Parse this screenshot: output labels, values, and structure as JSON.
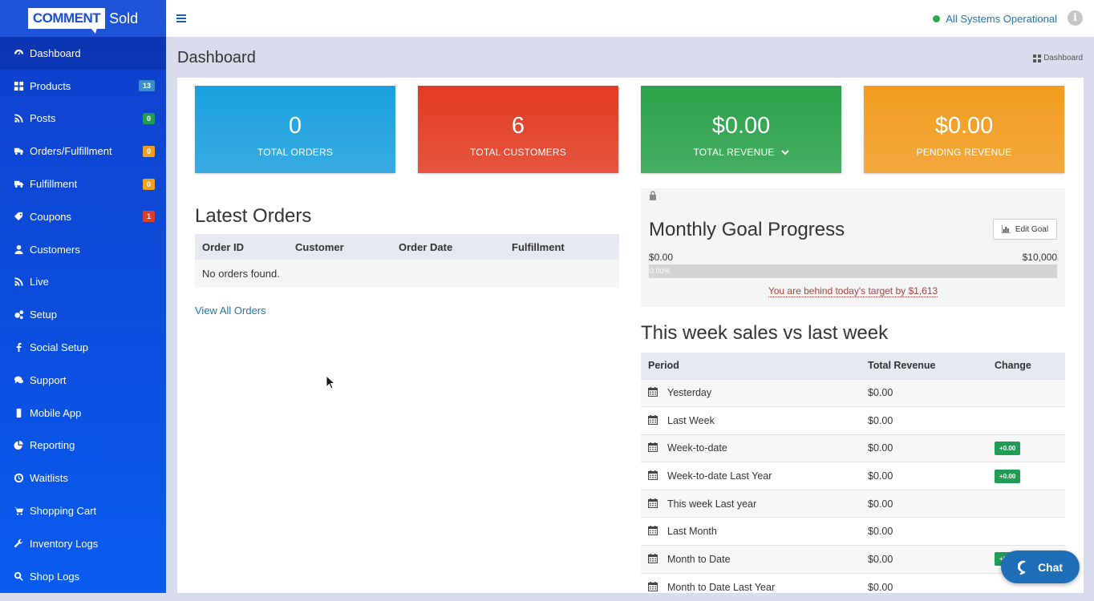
{
  "brand": {
    "comment": "COMMENT",
    "sold": "Sold"
  },
  "sidebar": {
    "items": [
      {
        "label": "Dashboard",
        "icon": "dashboard-icon",
        "badge": null,
        "active": true
      },
      {
        "label": "Products",
        "icon": "grid-icon",
        "badge": "13",
        "badge_color": "#3a8fc7"
      },
      {
        "label": "Posts",
        "icon": "rss-icon",
        "badge": "0",
        "badge_color": "#1f9d55"
      },
      {
        "label": "Orders/Fulfillment",
        "icon": "truck-icon",
        "badge": "0",
        "badge_color": "#f0a020"
      },
      {
        "label": "Fulfillment",
        "icon": "truck-icon",
        "badge": "0",
        "badge_color": "#f0a020"
      },
      {
        "label": "Coupons",
        "icon": "tag-icon",
        "badge": "1",
        "badge_color": "#d9412e"
      },
      {
        "label": "Customers",
        "icon": "user-icon",
        "badge": null
      },
      {
        "label": "Live",
        "icon": "rss-icon",
        "badge": null
      },
      {
        "label": "Setup",
        "icon": "cogs-icon",
        "badge": null
      },
      {
        "label": "Social Setup",
        "icon": "facebook-icon",
        "badge": null
      },
      {
        "label": "Support",
        "icon": "comments-icon",
        "badge": null
      },
      {
        "label": "Mobile App",
        "icon": "mobile-icon",
        "badge": null
      },
      {
        "label": "Reporting",
        "icon": "pie-chart-icon",
        "badge": null
      },
      {
        "label": "Waitlists",
        "icon": "clock-icon",
        "badge": null
      },
      {
        "label": "Shopping Cart",
        "icon": "cart-icon",
        "badge": null
      },
      {
        "label": "Inventory Logs",
        "icon": "wrench-icon",
        "badge": null
      },
      {
        "label": "Shop Logs",
        "icon": "search-icon",
        "badge": null
      }
    ]
  },
  "topbar": {
    "status": "All Systems Operational",
    "info": "i"
  },
  "page": {
    "title": "Dashboard",
    "breadcrumb": "Dashboard"
  },
  "stats": [
    {
      "value": "0",
      "label": "TOTAL ORDERS",
      "color": "#1aa0de"
    },
    {
      "value": "6",
      "label": "TOTAL CUSTOMERS",
      "color": "#e13b22"
    },
    {
      "value": "$0.00",
      "label": "TOTAL REVENUE",
      "color": "#2aa24a"
    },
    {
      "value": "$0.00",
      "label": "PENDING REVENUE",
      "color": "#f29c1f"
    }
  ],
  "latest_orders": {
    "title": "Latest Orders",
    "columns": [
      "Order ID",
      "Customer",
      "Order Date",
      "Fulfillment"
    ],
    "empty": "No orders found.",
    "view_all": "View All Orders"
  },
  "goal": {
    "title": "Monthly Goal Progress",
    "edit_label": "Edit Goal",
    "start": "$0.00",
    "end": "$10,000",
    "progress_percent": 0,
    "progress_text": "0.00%",
    "behind_text": "You are behind today's target by $1,613"
  },
  "week_sales": {
    "title": "This week sales vs last week",
    "columns": [
      "Period",
      "Total Revenue",
      "Change"
    ],
    "rows": [
      {
        "period": "Yesterday",
        "revenue": "$0.00",
        "change": ""
      },
      {
        "period": "Last Week",
        "revenue": "$0.00",
        "change": ""
      },
      {
        "period": "Week-to-date",
        "revenue": "$0.00",
        "change": "+0.00"
      },
      {
        "period": "Week-to-date Last Year",
        "revenue": "$0.00",
        "change": "+0.00"
      },
      {
        "period": "This week Last year",
        "revenue": "$0.00",
        "change": ""
      },
      {
        "period": "Last Month",
        "revenue": "$0.00",
        "change": ""
      },
      {
        "period": "Month to Date",
        "revenue": "$0.00",
        "change": "+0.00"
      },
      {
        "period": "Month to Date Last Year",
        "revenue": "$0.00",
        "change": ""
      }
    ]
  },
  "chat": {
    "label": "Chat"
  }
}
